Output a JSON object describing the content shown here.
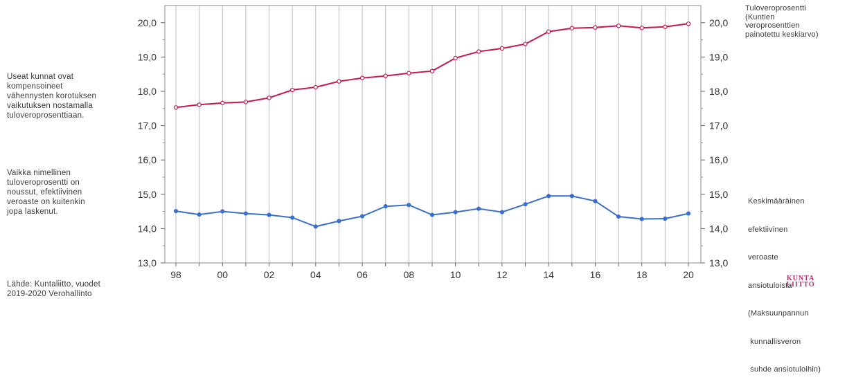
{
  "notes": {
    "left_top": [
      "Useat kunnat ovat",
      "kompensoineet",
      "vähennysten korotuksen",
      "vaikutuksen nostamalla",
      "tuloveroprosenttiaan."
    ],
    "left_bottom": [
      "Vaikka nimellinen",
      "tuloveroprosentti on",
      "noussut, efektiivinen",
      "veroaste on kuitenkin",
      "jopa laskenut."
    ],
    "source": [
      "Lähde: Kuntaliitto, vuodet",
      "2019-2020 Verohallinto"
    ]
  },
  "series_labels": {
    "tax_rate": [
      "Tuloveroprosentti",
      "(Kuntien",
      "veroprosenttien",
      "painotettu keskiarvo)"
    ],
    "effective_rate": [
      "Keskimääräinen",
      "efektiivinen",
      "veroaste",
      "ansiotuloista",
      "(Maksuunpannun",
      " kunnallisveron",
      " suhde ansiotuloihin)"
    ]
  },
  "logo": {
    "line1": "KUNTA",
    "line2": "LIITTO",
    "color": "#c0286c"
  },
  "chart_data": {
    "type": "line",
    "x": [
      1998,
      1999,
      2000,
      2001,
      2002,
      2003,
      2004,
      2005,
      2006,
      2007,
      2008,
      2009,
      2010,
      2011,
      2012,
      2013,
      2014,
      2015,
      2016,
      2017,
      2018,
      2019,
      2020
    ],
    "x_tick_labels": [
      "98",
      "00",
      "02",
      "04",
      "06",
      "08",
      "10",
      "12",
      "14",
      "16",
      "18",
      "20"
    ],
    "y_tick_labels": [
      "13,0",
      "14,0",
      "15,0",
      "16,0",
      "17,0",
      "18,0",
      "19,0",
      "20,0"
    ],
    "ylim": [
      13.0,
      20.5
    ],
    "grid": "vertical lines at each year",
    "series": [
      {
        "name": "Tuloveroprosentti (Kuntien veroprosenttien painotettu keskiarvo)",
        "color": "#c8174f",
        "marker": "hollow-circle",
        "values": [
          17.53,
          17.61,
          17.66,
          17.69,
          17.81,
          18.04,
          18.12,
          18.29,
          18.39,
          18.45,
          18.53,
          18.59,
          18.97,
          19.16,
          19.25,
          19.38,
          19.74,
          19.84,
          19.86,
          19.91,
          19.85,
          19.88,
          19.97
        ]
      },
      {
        "name": "Keskimääräinen efektiivinen veroaste ansiotuloista (Maksuunpannun kunnallisveron suhde ansiotuloihin)",
        "color": "#3a6fcf",
        "marker": "filled-circle",
        "values": [
          14.51,
          14.41,
          14.5,
          14.44,
          14.4,
          14.32,
          14.06,
          14.22,
          14.36,
          14.65,
          14.69,
          14.4,
          14.48,
          14.58,
          14.48,
          14.71,
          14.95,
          14.95,
          14.8,
          14.35,
          14.28,
          14.29,
          14.44
        ]
      }
    ]
  }
}
